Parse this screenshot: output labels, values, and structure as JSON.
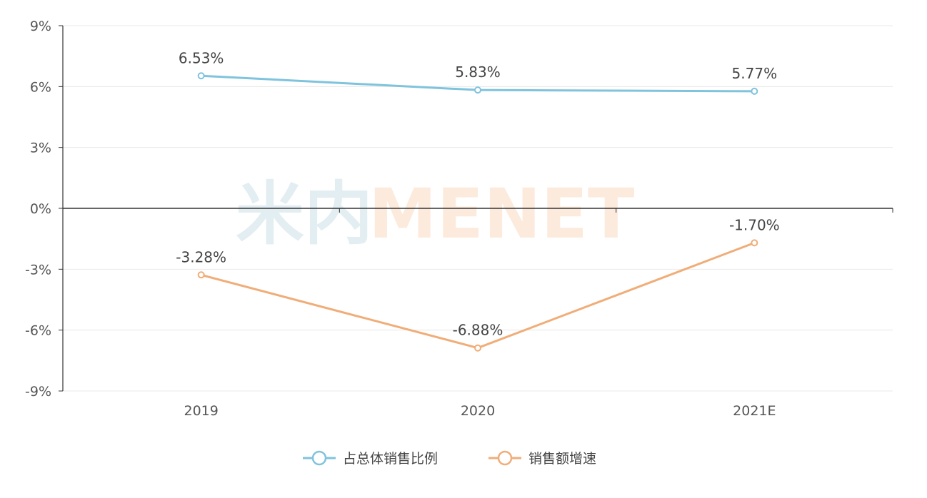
{
  "chart_data": {
    "type": "line",
    "categories": [
      "2019",
      "2020",
      "2021E"
    ],
    "series": [
      {
        "name": "占总体销售比例",
        "values": [
          6.53,
          5.83,
          5.77
        ],
        "labels": [
          "6.53%",
          "5.83%",
          "5.77%"
        ],
        "color": "#7fc3dd"
      },
      {
        "name": "销售额增速",
        "values": [
          -3.28,
          -6.88,
          -1.7
        ],
        "labels": [
          "-3.28%",
          "-6.88%",
          "-1.70%"
        ],
        "color": "#f0ad78"
      }
    ],
    "ylim": [
      -9,
      9
    ],
    "yticks": [
      9,
      6,
      3,
      0,
      -3,
      -6,
      -9
    ],
    "ytick_labels": [
      "9%",
      "6%",
      "3%",
      "0%",
      "-3%",
      "-6%",
      "-9%"
    ],
    "grid": true,
    "legend_position": "bottom-center",
    "watermark": {
      "left": "米内",
      "right": "MENET",
      "left_color": "#e3eef2",
      "right_color": "#fcebdd"
    }
  }
}
